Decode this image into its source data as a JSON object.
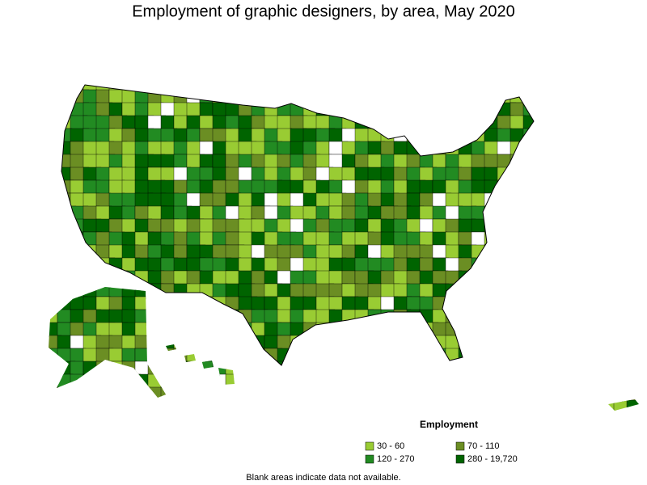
{
  "title": "Employment of graphic designers, by area, May 2020",
  "legend": {
    "title": "Employment",
    "items": [
      {
        "label": "30 - 60",
        "color": "#99cc33"
      },
      {
        "label": "70 - 110",
        "color": "#6b8e23"
      },
      {
        "label": "120 - 270",
        "color": "#228b22"
      },
      {
        "label": "280 - 19,720",
        "color": "#006400"
      }
    ]
  },
  "footnote": "Blank areas indicate data not available."
}
